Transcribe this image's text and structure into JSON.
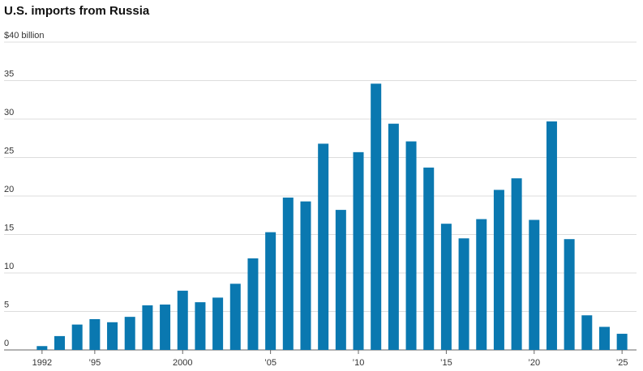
{
  "chart_data": {
    "type": "bar",
    "title": "U.S. imports from Russia",
    "categories": [
      "1992",
      null,
      null,
      "’95",
      null,
      null,
      null,
      null,
      "2000",
      null,
      null,
      null,
      null,
      "’05",
      null,
      null,
      null,
      null,
      "’10",
      null,
      null,
      null,
      null,
      "’15",
      null,
      null,
      null,
      null,
      "’20",
      null,
      null,
      null,
      null,
      "’25"
    ],
    "values": [
      0.5,
      1.8,
      3.3,
      4.0,
      3.6,
      4.3,
      5.8,
      5.9,
      7.7,
      6.2,
      6.8,
      8.6,
      11.9,
      15.3,
      19.8,
      19.3,
      26.8,
      18.2,
      25.7,
      34.6,
      29.4,
      27.1,
      23.7,
      16.4,
      14.5,
      17.0,
      20.8,
      22.3,
      16.9,
      29.7,
      14.4,
      4.5,
      3.0,
      2.1
    ],
    "color": "#0a78b0",
    "ylim": [
      0,
      40
    ],
    "yticks": [
      0,
      5,
      10,
      15,
      20,
      25,
      30,
      35,
      {
        "value": 40,
        "label": "$40 billion"
      }
    ],
    "grid": true
  }
}
